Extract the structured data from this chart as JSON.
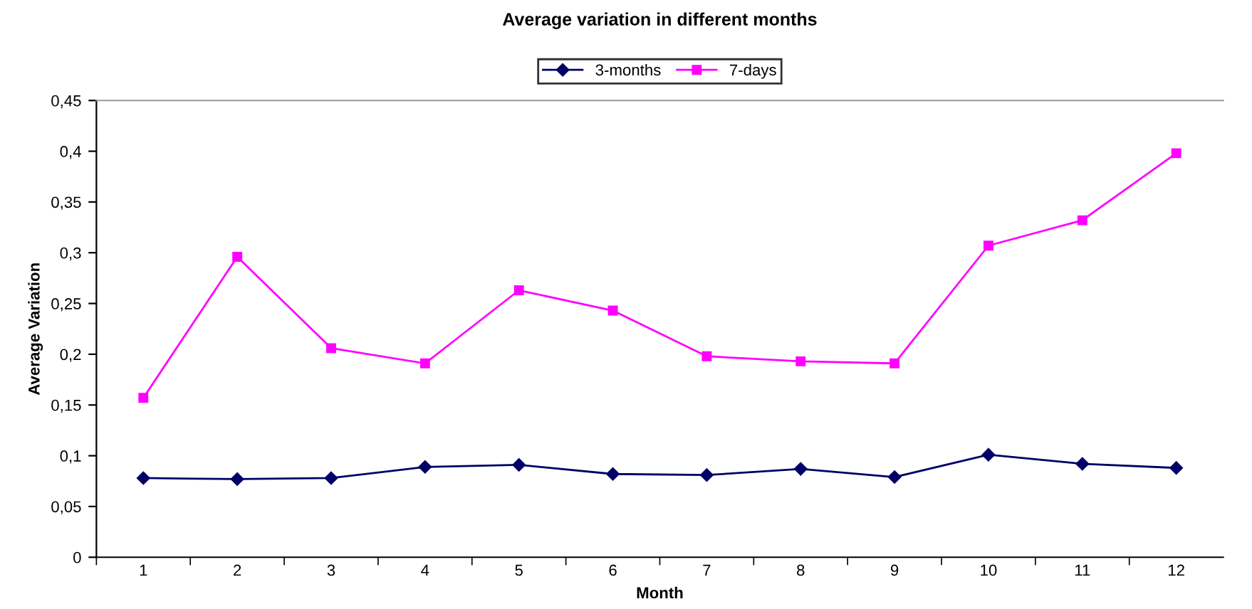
{
  "chart_data": {
    "type": "line",
    "title": "Average variation in different months",
    "xlabel": "Month",
    "ylabel": "Average Variation",
    "categories": [
      "1",
      "2",
      "3",
      "4",
      "5",
      "6",
      "7",
      "8",
      "9",
      "10",
      "11",
      "12"
    ],
    "series": [
      {
        "name": "3-months",
        "color": "#000066",
        "marker": "diamond",
        "values": [
          0.078,
          0.077,
          0.078,
          0.089,
          0.091,
          0.082,
          0.081,
          0.087,
          0.079,
          0.101,
          0.092,
          0.088
        ]
      },
      {
        "name": "7-days",
        "color": "#ff00ff",
        "marker": "square",
        "values": [
          0.157,
          0.296,
          0.206,
          0.191,
          0.263,
          0.243,
          0.198,
          0.193,
          0.191,
          0.307,
          0.332,
          0.398
        ]
      }
    ],
    "ylim": [
      0,
      0.45
    ],
    "yticks": [
      {
        "value": 0,
        "label": "0"
      },
      {
        "value": 0.05,
        "label": "0,05"
      },
      {
        "value": 0.1,
        "label": "0,1"
      },
      {
        "value": 0.15,
        "label": "0,15"
      },
      {
        "value": 0.2,
        "label": "0,2"
      },
      {
        "value": 0.25,
        "label": "0,25"
      },
      {
        "value": 0.3,
        "label": "0,3"
      },
      {
        "value": 0.35,
        "label": "0,35"
      },
      {
        "value": 0.4,
        "label": "0,4"
      },
      {
        "value": 0.45,
        "label": "0,45"
      }
    ],
    "legend": "top",
    "grid": false
  }
}
